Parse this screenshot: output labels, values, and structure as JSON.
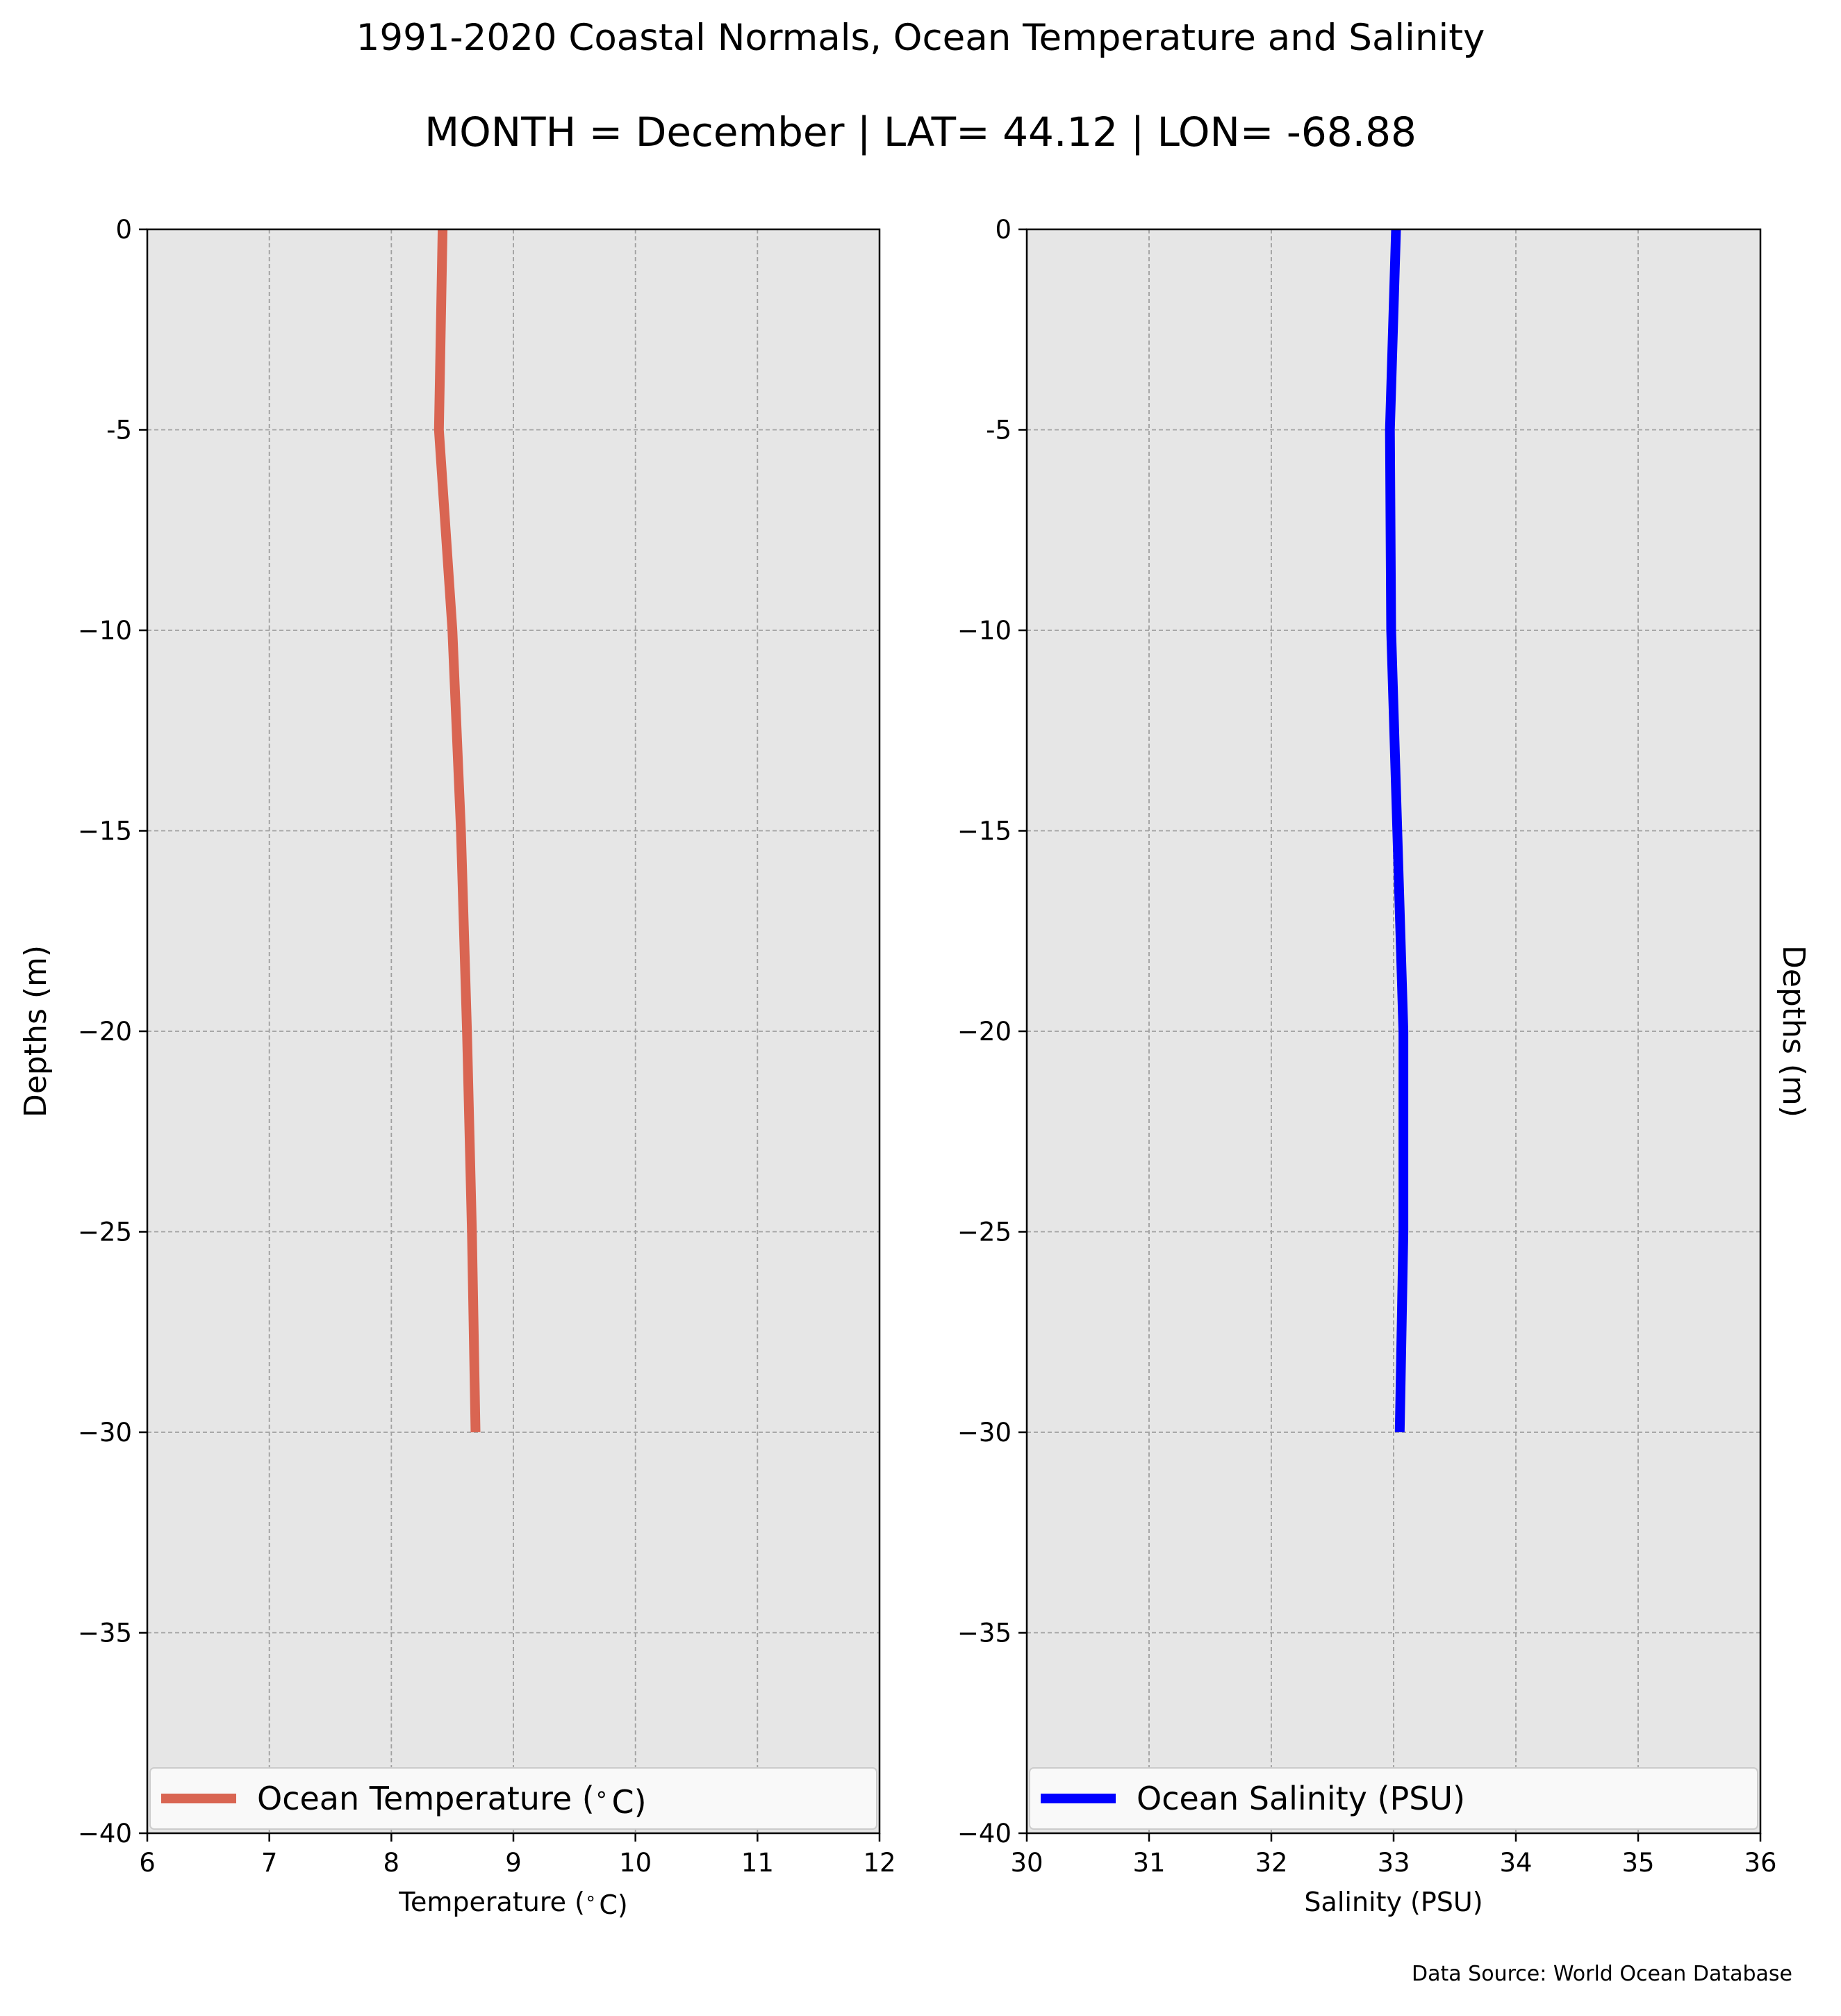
{
  "figure": {
    "title": "1991-2020 Coastal Normals, Ocean Temperature and Salinity",
    "subtitle": "MONTH = December | LAT= 44.12 | LON= -68.88",
    "source": "Data Source: World Ocean Database",
    "background": "#ffffff",
    "plot_bg": "#e6e6e6",
    "grid_color": "#a0a0a0",
    "legend_bg": "#f9f9f9"
  },
  "chart_data": [
    {
      "type": "line",
      "xlabel": "Temperature ($^\\circ$C)",
      "ylabel": "Depths (m)",
      "xlim": [
        6,
        12
      ],
      "ylim": [
        -40,
        0
      ],
      "xticks": [
        "6",
        "7",
        "8",
        "9",
        "10",
        "11",
        "12"
      ],
      "yticks": [
        "0",
        "-5",
        "−10",
        "−15",
        "−20",
        "−25",
        "−30",
        "−35",
        "−40"
      ],
      "grid": true,
      "legend_position": "bottom",
      "series": [
        {
          "name": "Ocean Temperature ($^\\circ$C)",
          "color": "#d96552",
          "x": [
            8.42,
            8.39,
            8.5,
            8.57,
            8.62,
            8.66,
            8.69
          ],
          "y": [
            0,
            -5,
            -10,
            -15,
            -20,
            -25,
            -30
          ]
        }
      ]
    },
    {
      "type": "line",
      "xlabel": "Salinity (PSU)",
      "ylabel": "Depths (m)",
      "xlim": [
        30,
        36
      ],
      "ylim": [
        -40,
        0
      ],
      "xticks": [
        "30",
        "31",
        "32",
        "33",
        "34",
        "35",
        "36"
      ],
      "yticks": [
        "0",
        "-5",
        "−10",
        "−15",
        "−20",
        "−25",
        "−30",
        "−35",
        "−40"
      ],
      "grid": true,
      "legend_position": "bottom",
      "series": [
        {
          "name": "Ocean Salinity (PSU)",
          "color": "#0000ff",
          "x": [
            33.02,
            32.97,
            32.98,
            33.03,
            33.08,
            33.08,
            33.05
          ],
          "y": [
            0,
            -5,
            -10,
            -15,
            -20,
            -25,
            -30
          ]
        }
      ]
    }
  ]
}
